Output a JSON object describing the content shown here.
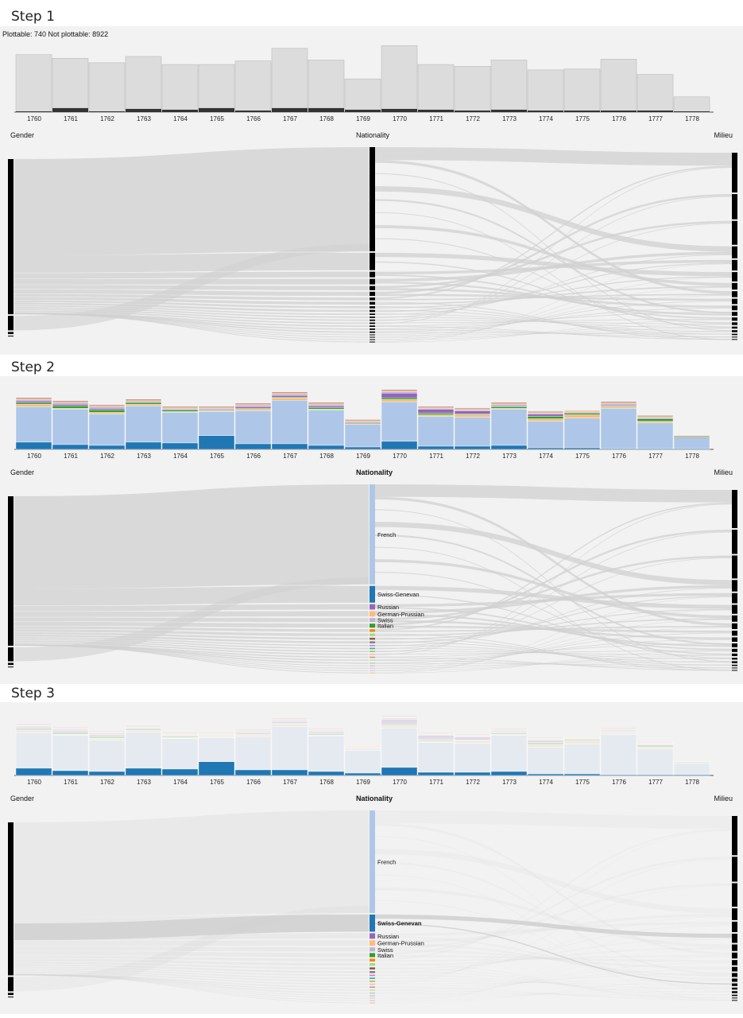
{
  "plottable_label": "Plottable: 740 Not plottable: 8922",
  "steps": [
    {
      "title": "Step 1",
      "mode": "gray",
      "nationality_bold": false,
      "labels": false,
      "highlight": ""
    },
    {
      "title": "Step 2",
      "mode": "color",
      "nationality_bold": true,
      "labels": true,
      "highlight": ""
    },
    {
      "title": "Step 3",
      "mode": "faded",
      "nationality_bold": true,
      "labels": true,
      "highlight": "Swiss-Genevan"
    }
  ],
  "sankey_axes": [
    "Gender",
    "Nationality",
    "Milieu"
  ],
  "nationality_labels": [
    "French",
    "Swiss-Genevan",
    "Russian",
    "German-Prussian",
    "Swiss",
    "Italian"
  ],
  "colors": {
    "French": "#aec7e8",
    "Swiss-Genevan": "#1f77b4",
    "Russian": "#9467bd",
    "German-Prussian": "#ffbb78",
    "Swiss": "#c5b0d5",
    "Italian": "#2ca02c",
    "Other1": "#ff7f0e",
    "Other2": "#8c564b",
    "Other3": "#7f7f7f",
    "Other4": "#98df8a",
    "bar_gray": "#dcdcdc",
    "bar_dark": "#333333",
    "node": "#000000",
    "link": "#d0d0d0"
  },
  "chart_data": {
    "type": "bar",
    "categories": [
      "1760",
      "1761",
      "1762",
      "1763",
      "1764",
      "1765",
      "1766",
      "1767",
      "1768",
      "1769",
      "1770",
      "1771",
      "1772",
      "1773",
      "1774",
      "1775",
      "1776",
      "1777",
      "1778"
    ],
    "series": [
      {
        "key": "Swiss-Genevan",
        "values": [
          9,
          6,
          5,
          9,
          8,
          17,
          7,
          7,
          5,
          3,
          10,
          4,
          4,
          5,
          2,
          2,
          1,
          1,
          1
        ]
      },
      {
        "key": "French",
        "values": [
          44,
          44,
          39,
          45,
          38,
          30,
          41,
          54,
          44,
          28,
          49,
          37,
          36,
          45,
          33,
          37,
          50,
          32,
          13
        ]
      },
      {
        "key": "German-Prussian",
        "values": [
          3,
          1,
          2,
          2,
          1,
          1,
          2,
          3,
          1,
          1,
          3,
          2,
          3,
          1,
          3,
          4,
          2,
          2,
          0
        ]
      },
      {
        "key": "Italian",
        "values": [
          2,
          3,
          3,
          2,
          2,
          1,
          1,
          1,
          2,
          1,
          2,
          2,
          1,
          2,
          3,
          2,
          1,
          3,
          1
        ]
      },
      {
        "key": "Russian",
        "values": [
          2,
          2,
          2,
          1,
          1,
          1,
          2,
          2,
          2,
          1,
          6,
          5,
          4,
          1,
          3,
          1,
          1,
          1,
          0
        ]
      },
      {
        "key": "Swiss",
        "values": [
          2,
          2,
          2,
          1,
          1,
          1,
          2,
          2,
          2,
          1,
          2,
          1,
          1,
          2,
          1,
          1,
          2,
          1,
          1
        ]
      },
      {
        "key": "Other1",
        "values": [
          1,
          1,
          1,
          1,
          1,
          1,
          1,
          1,
          1,
          1,
          1,
          1,
          1,
          1,
          1,
          1,
          1,
          1,
          0
        ]
      },
      {
        "key": "Other2",
        "values": [
          1,
          1,
          1,
          1,
          1,
          1,
          1,
          1,
          1,
          1,
          1,
          1,
          1,
          1,
          1,
          0,
          1,
          1,
          1
        ]
      }
    ],
    "dark_values": [
      1,
      5,
      1,
      4,
      3,
      5,
      2,
      5,
      5,
      3,
      4,
      3,
      2,
      3,
      2,
      2,
      2,
      2,
      1
    ],
    "ylim": [
      0,
      85
    ]
  },
  "sankey": {
    "gender_nodes": [
      214,
      20,
      3,
      1
    ],
    "nationality_nodes": [
      150,
      25,
      8,
      8,
      6,
      6,
      4,
      4,
      3,
      3,
      2,
      2,
      2,
      2,
      2,
      2,
      2,
      1,
      1,
      1,
      1
    ],
    "milieu_nodes": [
      60,
      38,
      36,
      18,
      16,
      14,
      10,
      9,
      8,
      7,
      6,
      5,
      4,
      3,
      3,
      2,
      1,
      1
    ]
  }
}
